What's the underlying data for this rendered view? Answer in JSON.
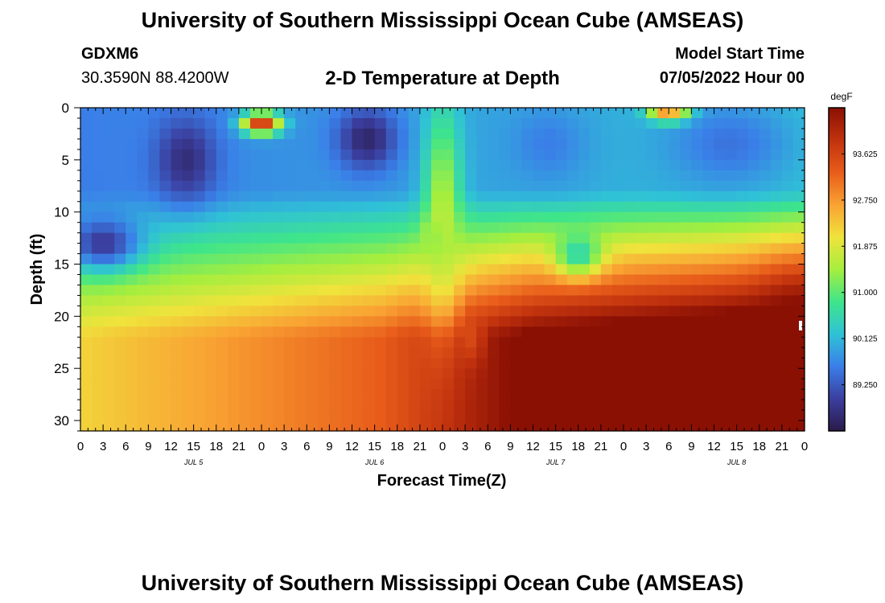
{
  "page": {
    "title": "University of Southern Mississippi Ocean Cube (AMSEAS)",
    "footer_title": "University of Southern Mississippi Ocean Cube (AMSEAS)",
    "station": "GDXM6",
    "coords": "30.3590N  88.4200W",
    "subtitle": "2-D Temperature at Depth",
    "model_start_label": "Model Start Time",
    "model_start_value": "07/05/2022 Hour 00"
  },
  "chart_data": {
    "type": "heatmap",
    "title": "2-D Temperature at Depth",
    "xlabel": "Forecast Time(Z)",
    "ylabel": "Depth (ft)",
    "x_ticks": [
      "0",
      "3",
      "6",
      "9",
      "12",
      "15",
      "18",
      "21",
      "0",
      "3",
      "6",
      "9",
      "12",
      "15",
      "18",
      "21",
      "0",
      "3",
      "6",
      "9",
      "12",
      "15",
      "18",
      "21",
      "0",
      "3",
      "6",
      "9",
      "12",
      "15",
      "18",
      "21",
      "0"
    ],
    "day_labels": [
      {
        "label": "JUL 5",
        "hour": 15
      },
      {
        "label": "JUL 6",
        "hour": 39
      },
      {
        "label": "JUL 7",
        "hour": 63
      },
      {
        "label": "JUL 8",
        "hour": 87
      }
    ],
    "x_range_hours": [
      0,
      96
    ],
    "y_ticks": [
      0,
      5,
      10,
      15,
      20,
      25,
      30
    ],
    "y_range_ft": [
      0,
      31
    ],
    "colorbar": {
      "unit": "degF",
      "min": 88.375,
      "max": 94.5,
      "ticks": [
        93.625,
        92.75,
        91.875,
        91.0,
        90.125,
        89.25
      ],
      "tick_labels": [
        "93.625",
        "92.750",
        "91.875",
        "91.000",
        "90.125",
        "89.250"
      ],
      "colors": [
        "#2b1a4a",
        "#3b3f9f",
        "#3a7ee8",
        "#2fc2d6",
        "#3fe58a",
        "#a5ee3e",
        "#f0e33c",
        "#f9a233",
        "#e85c1a",
        "#c1320e",
        "#8a1004"
      ]
    },
    "hotspots": [
      {
        "t": 14,
        "d": 5,
        "temp": 88.7,
        "rt": 4,
        "rd": 4
      },
      {
        "t": 3,
        "d": 13,
        "temp": 88.9,
        "rt": 5,
        "rd": 2.5
      },
      {
        "t": 38,
        "d": 3,
        "temp": 88.6,
        "rt": 4,
        "rd": 3
      },
      {
        "t": 24,
        "d": 1.5,
        "temp": 93.9,
        "rt": 2.5,
        "rd": 1.0
      },
      {
        "t": 62,
        "d": 3.5,
        "temp": 89.6,
        "rt": 5,
        "rd": 3.5
      },
      {
        "t": 86,
        "d": 3.5,
        "temp": 89.5,
        "rt": 8,
        "rd": 4
      },
      {
        "t": 48,
        "d": 10,
        "temp": 91.6,
        "rt": 2.5,
        "rd": 10
      },
      {
        "t": 47,
        "d": 12.5,
        "temp": 91.2,
        "rt": 1.5,
        "rd": 1.5
      },
      {
        "t": 52,
        "d": 22,
        "temp": 93.6,
        "rt": 1.5,
        "rd": 2.5
      },
      {
        "t": 95,
        "d": 24,
        "temp": 94.6,
        "rt": 5,
        "rd": 7
      },
      {
        "t": 78,
        "d": 0.5,
        "temp": 93.2,
        "rt": 2.5,
        "rd": 0.8
      },
      {
        "t": 66,
        "d": 14,
        "temp": 90.5,
        "rt": 3,
        "rd": 2
      }
    ]
  }
}
